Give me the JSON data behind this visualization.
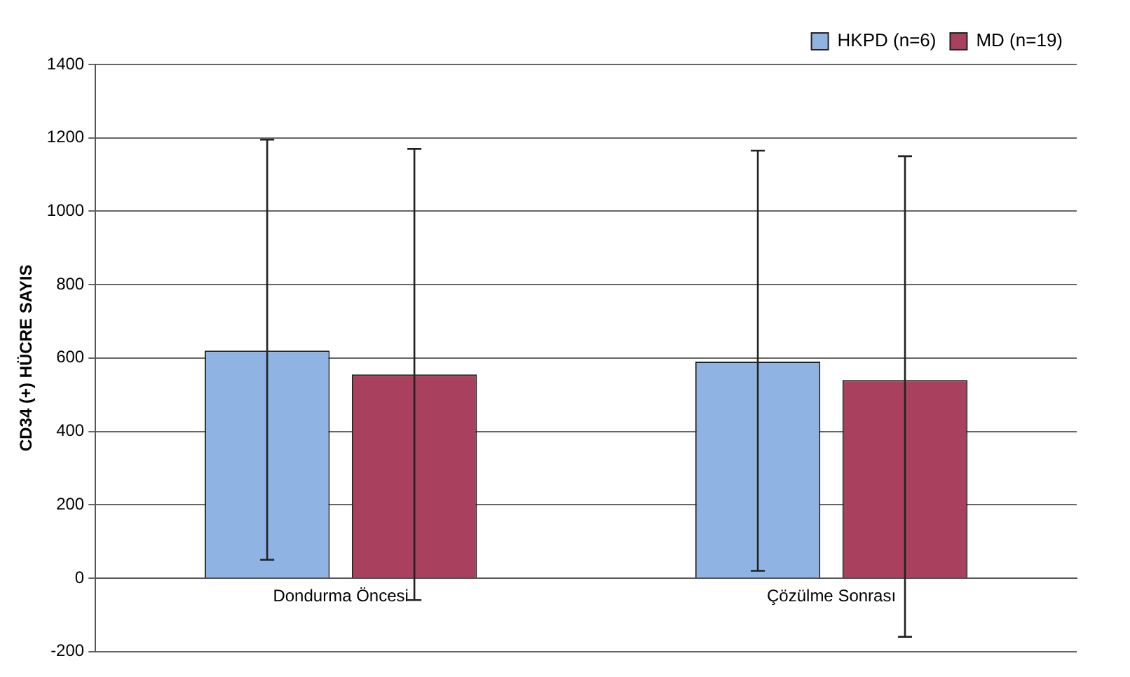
{
  "chart_data": {
    "type": "bar",
    "ylabel": "CD34 (+) HÜCRE SAYIS",
    "categories": [
      "Dondurma Öncesi",
      "Çözülme Sonrası"
    ],
    "series": [
      {
        "name": "HKPD (n=6)",
        "color": "#8fb4e3",
        "values": [
          620,
          590
        ],
        "errors": [
          [
            50,
            1195
          ],
          [
            20,
            1165
          ]
        ]
      },
      {
        "name": "MD (n=19)",
        "color": "#a8405e",
        "values": [
          555,
          540
        ],
        "errors": [
          [
            -60,
            1170
          ],
          [
            -160,
            1150
          ]
        ]
      }
    ],
    "ylim": [
      -200,
      1400
    ],
    "yticks": [
      -200,
      0,
      200,
      400,
      600,
      800,
      1000,
      1200,
      1400
    ],
    "grid": "y",
    "legend": "top right"
  }
}
